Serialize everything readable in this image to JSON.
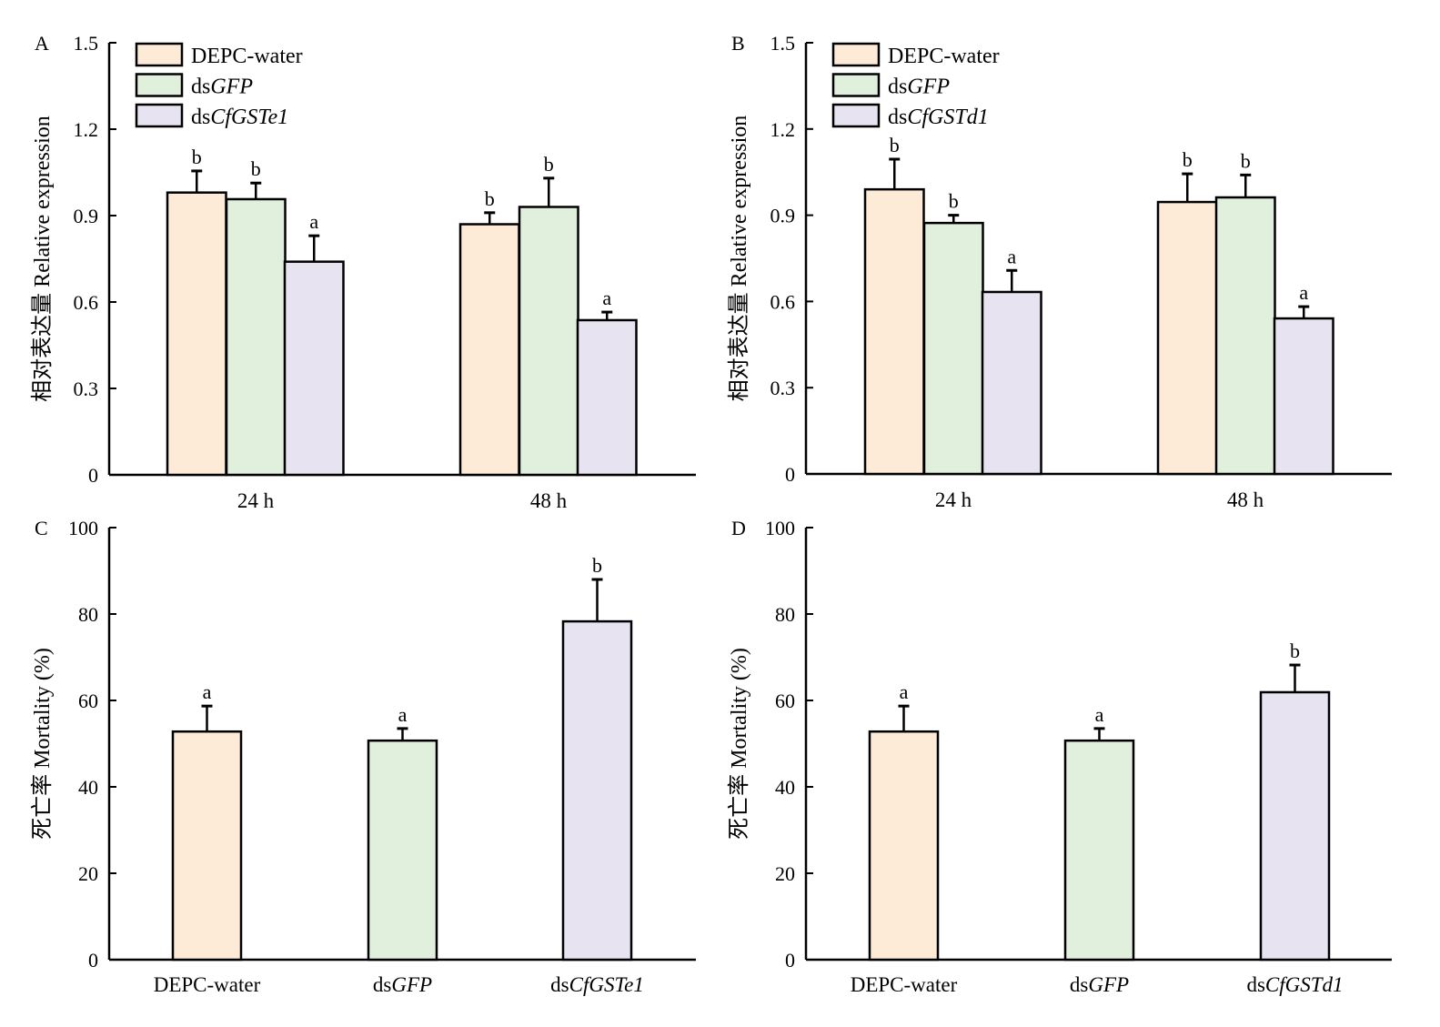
{
  "colors": {
    "DEPC-water": "#fdebd7",
    "dsGFP": "#e1f0dc",
    "treatment": "#e7e3f0",
    "stroke": "#000000"
  },
  "chart_data": [
    {
      "panel": "A",
      "type": "bar",
      "ylabel": "相对表达量 Relative expression",
      "ylim": [
        0,
        1.5
      ],
      "yticks": [
        "0",
        "0.3",
        "0.6",
        "0.9",
        "1.2",
        "1.5"
      ],
      "categories": [
        "24 h",
        "48 h"
      ],
      "legend": [
        "DEPC-water",
        "dsGFP",
        "dsCfGSTe1"
      ],
      "legend_position": "top-left",
      "series": [
        {
          "name": "DEPC-water",
          "values": [
            0.98,
            0.87
          ],
          "errors": [
            0.075,
            0.04
          ],
          "letters": [
            "b",
            "b"
          ]
        },
        {
          "name": "dsGFP",
          "values": [
            0.957,
            0.93
          ],
          "errors": [
            0.056,
            0.1
          ],
          "letters": [
            "b",
            "b"
          ]
        },
        {
          "name": "dsCfGSTe1",
          "values": [
            0.74,
            0.537
          ],
          "errors": [
            0.09,
            0.028
          ],
          "letters": [
            "a",
            "a"
          ]
        }
      ]
    },
    {
      "panel": "B",
      "type": "bar",
      "ylabel": "相对表达量 Relative expression",
      "ylim": [
        0,
        1.5
      ],
      "yticks": [
        "0",
        "0.3",
        "0.6",
        "0.9",
        "1.2",
        "1.5"
      ],
      "categories": [
        "24 h",
        "48 h"
      ],
      "legend": [
        "DEPC-water",
        "dsGFP",
        "dsCfGSTd1"
      ],
      "legend_position": "top-left",
      "series": [
        {
          "name": "DEPC-water",
          "values": [
            0.99,
            0.946
          ],
          "errors": [
            0.105,
            0.098
          ],
          "letters": [
            "b",
            "b"
          ]
        },
        {
          "name": "dsGFP",
          "values": [
            0.873,
            0.962
          ],
          "errors": [
            0.027,
            0.078
          ],
          "letters": [
            "b",
            "b"
          ]
        },
        {
          "name": "dsCfGSTd1",
          "values": [
            0.633,
            0.541
          ],
          "errors": [
            0.075,
            0.041
          ],
          "letters": [
            "a",
            "a"
          ]
        }
      ]
    },
    {
      "panel": "C",
      "type": "bar",
      "ylabel": "死亡率 Mortality (%)",
      "ylim": [
        0,
        100
      ],
      "yticks": [
        "0",
        "20",
        "40",
        "60",
        "80",
        "100"
      ],
      "categories": [
        "DEPC-water",
        "dsGFP",
        "dsCfGSTe1"
      ],
      "values": [
        52.8,
        50.7,
        78.3
      ],
      "errors": [
        5.9,
        2.8,
        9.7
      ],
      "letters": [
        "a",
        "a",
        "b"
      ]
    },
    {
      "panel": "D",
      "type": "bar",
      "ylabel": "死亡率 Mortality (%)",
      "ylim": [
        0,
        100
      ],
      "yticks": [
        "0",
        "20",
        "40",
        "60",
        "80",
        "100"
      ],
      "categories": [
        "DEPC-water",
        "dsGFP",
        "dsCfGSTd1"
      ],
      "values": [
        52.8,
        50.7,
        61.9
      ],
      "errors": [
        5.9,
        2.8,
        6.3
      ],
      "letters": [
        "a",
        "a",
        "b"
      ]
    }
  ]
}
